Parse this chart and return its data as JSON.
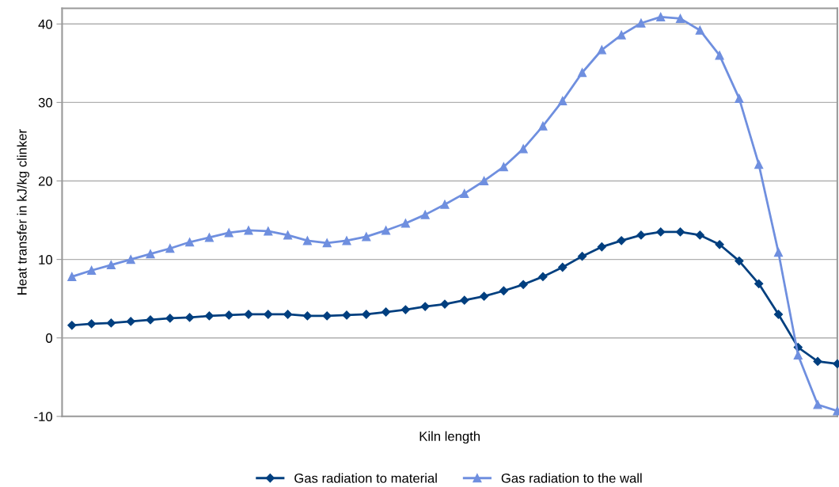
{
  "chart_data": {
    "type": "line",
    "xlabel": "Kiln length",
    "ylabel": "Heat transfer in kJ/kg clinker",
    "categories": [
      null,
      null,
      null,
      null,
      null,
      null,
      null,
      null,
      null,
      null,
      null,
      null,
      null,
      null,
      null,
      null,
      null,
      null,
      null,
      null,
      null,
      null,
      null,
      null,
      null,
      null,
      null,
      null,
      null,
      null,
      null,
      null,
      null,
      null,
      null,
      null,
      null,
      null,
      null,
      null
    ],
    "series": [
      {
        "name": "Gas radiation to material",
        "color": "#003f7f",
        "marker": "diamond",
        "values": [
          1.6,
          1.8,
          1.9,
          2.1,
          2.3,
          2.5,
          2.6,
          2.8,
          2.9,
          3.0,
          3.0,
          3.0,
          2.8,
          2.8,
          2.9,
          3.0,
          3.3,
          3.6,
          4.0,
          4.3,
          4.8,
          5.3,
          6.0,
          6.8,
          7.8,
          9.0,
          10.4,
          11.6,
          12.4,
          13.1,
          13.5,
          13.5,
          13.1,
          11.9,
          9.8,
          6.9,
          3.0,
          -1.2,
          -3.0,
          -3.3
        ]
      },
      {
        "name": "Gas radiation to the wall",
        "color": "#6f8fdf",
        "marker": "triangle",
        "values": [
          7.8,
          8.6,
          9.3,
          10.0,
          10.7,
          11.4,
          12.2,
          12.8,
          13.4,
          13.7,
          13.6,
          13.1,
          12.4,
          12.1,
          12.4,
          12.9,
          13.7,
          14.6,
          15.7,
          17.0,
          18.4,
          20.0,
          21.8,
          24.1,
          27.0,
          30.2,
          33.8,
          36.7,
          38.6,
          40.1,
          40.9,
          40.7,
          39.2,
          36.0,
          30.5,
          22.1,
          10.9,
          -2.2,
          -8.5,
          -9.3
        ]
      }
    ],
    "ylim": [
      -10,
      42
    ],
    "yticks": [
      -10,
      0,
      10,
      20,
      30,
      40
    ],
    "grid": "y",
    "legend": "bottom",
    "line_style": "solid"
  }
}
